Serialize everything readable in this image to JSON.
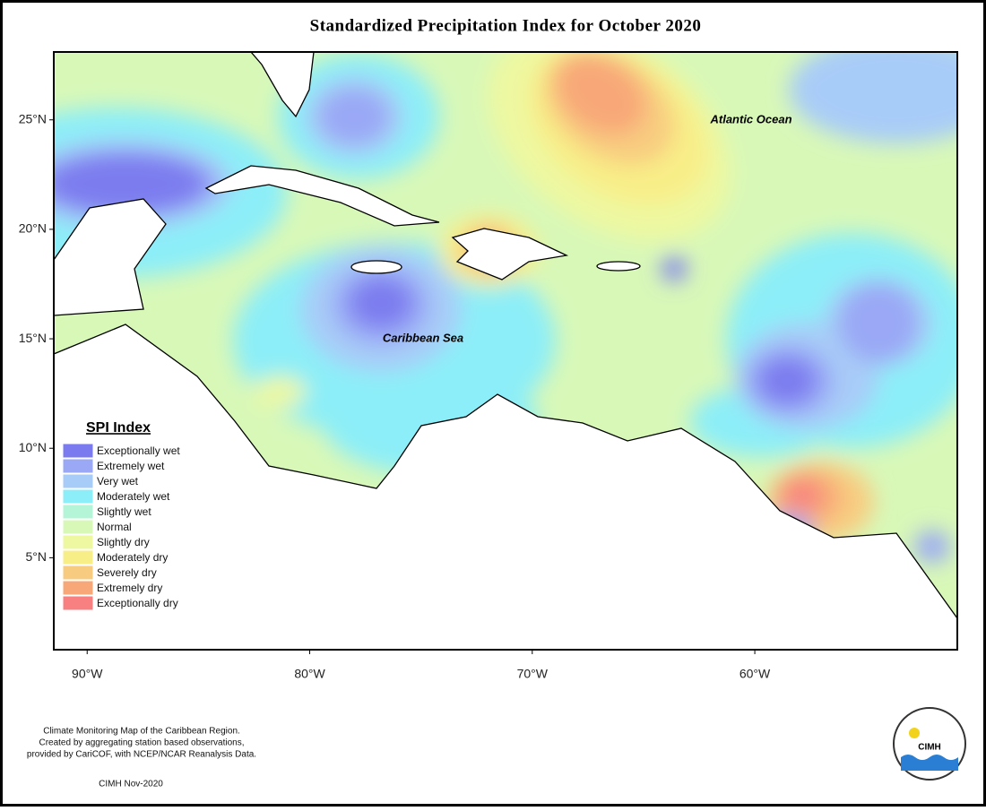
{
  "title": "Standardized Precipitation Index for October 2020",
  "map": {
    "lon_range": [
      -91.5,
      -50.9
    ],
    "lat_range": [
      0.8,
      28.1
    ],
    "lat_ticks": [
      {
        "value": 25,
        "label": "25°N"
      },
      {
        "value": 20,
        "label": "20°N"
      },
      {
        "value": 15,
        "label": "15°N"
      },
      {
        "value": 10,
        "label": "10°N"
      },
      {
        "value": 5,
        "label": "5°N"
      }
    ],
    "lon_ticks": [
      {
        "value": -90,
        "label": "90°W"
      },
      {
        "value": -80,
        "label": "80°W"
      },
      {
        "value": -70,
        "label": "70°W"
      },
      {
        "value": -60,
        "label": "60°W"
      }
    ],
    "labels": [
      "Atlantic Ocean",
      "Caribbean Sea"
    ]
  },
  "legend": {
    "title": "SPI Index",
    "items": [
      {
        "label": "Exceptionally wet",
        "color": "#7b7bef"
      },
      {
        "label": "Extremely wet",
        "color": "#9aa8f5"
      },
      {
        "label": "Very wet",
        "color": "#a8ccf8"
      },
      {
        "label": "Moderately wet",
        "color": "#8ceef8"
      },
      {
        "label": "Slightly wet",
        "color": "#b4f5d8"
      },
      {
        "label": "Normal",
        "color": "#d8f8b8"
      },
      {
        "label": "Slightly dry",
        "color": "#eef8a0"
      },
      {
        "label": "Moderately dry",
        "color": "#f8ee88"
      },
      {
        "label": "Severely dry",
        "color": "#f8cc80"
      },
      {
        "label": "Extremely dry",
        "color": "#f8a878"
      },
      {
        "label": "Exceptionally dry",
        "color": "#f88080"
      }
    ]
  },
  "footer": {
    "lines": [
      "Climate Monitoring Map of the Caribbean Region.",
      "Created by aggregating station based observations,",
      "provided by CariCOF, with NCEP/NCAR Reanalysis Data."
    ],
    "credit": "CIMH Nov-2020",
    "logo": "CIMH"
  }
}
